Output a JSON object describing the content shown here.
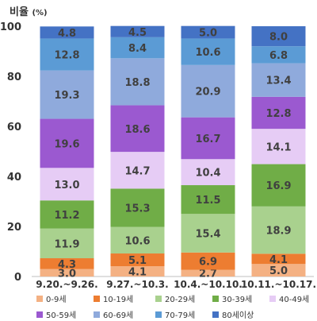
{
  "chart_data": {
    "type": "bar",
    "stacked": true,
    "ylabel": "비율",
    "yunit": "(%)",
    "ylim": [
      0,
      100
    ],
    "yticks": [
      "0",
      "20",
      "40",
      "60",
      "80",
      "100"
    ],
    "categories": [
      "9.20.~9.26.",
      "9.27.~10.3.",
      "10.4.~10.10.",
      "10.11.~10.17."
    ],
    "series": [
      {
        "name": "0-9세",
        "color": "#F4B183",
        "values": [
          "3.0",
          "4.1",
          "2.7",
          "5.0"
        ]
      },
      {
        "name": "10-19세",
        "color": "#ED7D31",
        "values": [
          "4.3",
          "5.1",
          "6.9",
          "4.1"
        ]
      },
      {
        "name": "20-29세",
        "color": "#A9D18E",
        "values": [
          "11.9",
          "10.6",
          "15.4",
          "18.9"
        ]
      },
      {
        "name": "30-39세",
        "color": "#70AD47",
        "values": [
          "11.2",
          "15.3",
          "11.5",
          "16.9"
        ]
      },
      {
        "name": "40-49세",
        "color": "#E6CCF5",
        "values": [
          "13.0",
          "14.7",
          "10.4",
          "14.1"
        ]
      },
      {
        "name": "50-59세",
        "color": "#9B59D0",
        "values": [
          "19.6",
          "18.6",
          "16.7",
          "12.8"
        ]
      },
      {
        "name": "60-69세",
        "color": "#8FAADC",
        "values": [
          "19.3",
          "18.8",
          "20.9",
          "13.4"
        ]
      },
      {
        "name": "70-79세",
        "color": "#5B9BD5",
        "values": [
          "12.8",
          "8.4",
          "10.6",
          "6.8"
        ]
      },
      {
        "name": "80세이상",
        "color": "#4472C4",
        "values": [
          "4.8",
          "4.5",
          "5.0",
          "8.0"
        ]
      }
    ],
    "grid": false,
    "legend_position": "bottom"
  }
}
